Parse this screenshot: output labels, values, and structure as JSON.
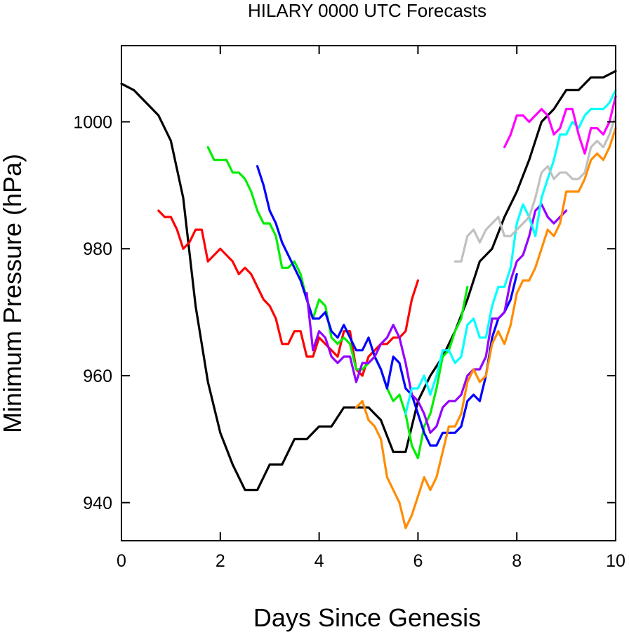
{
  "chart_data": {
    "type": "line",
    "title": "HILARY 0000 UTC Forecasts",
    "xlabel": "Days Since Genesis",
    "ylabel": "Minimum Pressure (hPa)",
    "xlim": [
      0,
      10
    ],
    "ylim": [
      934,
      1012
    ],
    "xticks": [
      "0",
      "2",
      "4",
      "6",
      "8",
      "10"
    ],
    "yticks": [
      "940",
      "960",
      "980",
      "1000"
    ],
    "grid": false,
    "series": [
      {
        "color": "#000000",
        "x": [
          0,
          0.25,
          0.5,
          0.75,
          1.0,
          1.25,
          1.5,
          1.75,
          2.0,
          2.25,
          2.5,
          2.75,
          3.0,
          3.25,
          3.5,
          3.75,
          4.0,
          4.25,
          4.5,
          4.75,
          5.0,
          5.25,
          5.5,
          5.75,
          6.0,
          6.25,
          6.5,
          6.75,
          7.0,
          7.25,
          7.5,
          7.75,
          8.0,
          8.25,
          8.5,
          8.75,
          9.0,
          9.25,
          9.5,
          9.75,
          10.0
        ],
        "y": [
          1006,
          1005,
          1003,
          1001,
          997,
          988,
          971,
          959,
          951,
          946,
          942,
          942,
          946,
          946,
          950,
          950,
          952,
          952,
          955,
          955,
          955,
          953,
          948,
          948,
          956,
          960,
          963,
          967,
          972,
          978,
          980,
          985,
          989,
          994,
          1000,
          1002,
          1005,
          1005,
          1007,
          1007,
          1008
        ]
      },
      {
        "color": "#ff0000",
        "x": [
          0.75,
          0.875,
          1.0,
          1.125,
          1.25,
          1.375,
          1.5,
          1.625,
          1.75,
          1.875,
          2.0,
          2.125,
          2.25,
          2.375,
          2.5,
          2.625,
          2.75,
          2.875,
          3.0,
          3.125,
          3.25,
          3.375,
          3.5,
          3.625,
          3.75,
          3.875,
          4.0,
          4.125,
          4.25,
          4.375,
          4.5,
          4.625,
          4.75,
          4.875,
          5.0,
          5.125,
          5.25,
          5.375,
          5.5,
          5.625,
          5.75,
          5.875,
          6.0
        ],
        "y": [
          986,
          985,
          985,
          983,
          980,
          981,
          983,
          983,
          978,
          979,
          980,
          979,
          978,
          976,
          977,
          976,
          974,
          972,
          971,
          969,
          965,
          965,
          967,
          967,
          963,
          963,
          966,
          965,
          964,
          963,
          967,
          967,
          961,
          960,
          963,
          964,
          965,
          965,
          966,
          966,
          967,
          972,
          975
        ]
      },
      {
        "color": "#00ee00",
        "x": [
          1.75,
          1.875,
          2.0,
          2.125,
          2.25,
          2.375,
          2.5,
          2.625,
          2.75,
          2.875,
          3.0,
          3.125,
          3.25,
          3.375,
          3.5,
          3.625,
          3.75,
          3.875,
          4.0,
          4.125,
          4.25,
          4.375,
          4.5,
          4.625,
          4.75,
          4.875,
          5.0,
          5.125,
          5.25,
          5.375,
          5.5,
          5.625,
          5.75,
          5.875,
          6.0,
          6.125,
          6.25,
          6.375,
          6.5,
          6.625,
          6.75,
          6.875,
          7.0
        ],
        "y": [
          996,
          994,
          994,
          994,
          992,
          992,
          991,
          989,
          986,
          984,
          984,
          982,
          977,
          977,
          978,
          976,
          972,
          969,
          972,
          971,
          966,
          965,
          966,
          965,
          961,
          961,
          962,
          963,
          961,
          958,
          956,
          957,
          954,
          949,
          947,
          952,
          954,
          958,
          963,
          964,
          967,
          969,
          974
        ]
      },
      {
        "color": "#0000ff",
        "x": [
          2.75,
          2.875,
          3.0,
          3.125,
          3.25,
          3.375,
          3.5,
          3.625,
          3.75,
          3.875,
          4.0,
          4.125,
          4.25,
          4.375,
          4.5,
          4.625,
          4.75,
          4.875,
          5.0,
          5.125,
          5.25,
          5.375,
          5.5,
          5.625,
          5.75,
          5.875,
          6.0,
          6.125,
          6.25,
          6.375,
          6.5,
          6.625,
          6.75,
          6.875,
          7.0,
          7.125,
          7.25,
          7.375,
          7.5,
          7.625,
          7.75,
          7.875,
          8.0
        ],
        "y": [
          993,
          990,
          986,
          984,
          981,
          979,
          977,
          975,
          972,
          969,
          969,
          970,
          967,
          966,
          968,
          966,
          964,
          964,
          966,
          963,
          961,
          958,
          963,
          962,
          958,
          957,
          954,
          951,
          949,
          949,
          951,
          951,
          951,
          952,
          956,
          957,
          956,
          960,
          966,
          969,
          970,
          972,
          976
        ]
      },
      {
        "color": "#9400ff",
        "x": [
          3.75,
          3.875,
          4.0,
          4.125,
          4.25,
          4.375,
          4.5,
          4.625,
          4.75,
          4.875,
          5.0,
          5.125,
          5.25,
          5.375,
          5.5,
          5.625,
          5.75,
          5.875,
          6.0,
          6.125,
          6.25,
          6.375,
          6.5,
          6.625,
          6.75,
          6.875,
          7.0,
          7.125,
          7.25,
          7.375,
          7.5,
          7.625,
          7.75,
          7.875,
          8.0,
          8.125,
          8.25,
          8.375,
          8.5,
          8.625,
          8.75,
          8.875,
          9.0
        ],
        "y": [
          973,
          964,
          967,
          966,
          963,
          962,
          963,
          963,
          959,
          962,
          962,
          963,
          965,
          966,
          968,
          966,
          962,
          957,
          956,
          954,
          951,
          952,
          955,
          956,
          956,
          957,
          960,
          961,
          961,
          963,
          969,
          969,
          970,
          975,
          978,
          979,
          982,
          986,
          987,
          985,
          984,
          985,
          986
        ]
      },
      {
        "color": "#ff8c00",
        "x": [
          4.75,
          4.875,
          5.0,
          5.125,
          5.25,
          5.375,
          5.5,
          5.625,
          5.75,
          5.875,
          6.0,
          6.125,
          6.25,
          6.375,
          6.5,
          6.625,
          6.75,
          6.875,
          7.0,
          7.125,
          7.25,
          7.375,
          7.5,
          7.625,
          7.75,
          7.875,
          8.0,
          8.125,
          8.25,
          8.375,
          8.5,
          8.625,
          8.75,
          8.875,
          9.0,
          9.125,
          9.25,
          9.375,
          9.5,
          9.625,
          9.75,
          9.875,
          10.0
        ],
        "y": [
          955,
          956,
          953,
          952,
          950,
          944,
          942,
          940,
          936,
          938,
          941,
          944,
          942,
          944,
          948,
          952,
          952,
          954,
          959,
          961,
          959,
          960,
          965,
          967,
          965,
          968,
          973,
          975,
          975,
          977,
          980,
          983,
          982,
          984,
          989,
          989,
          989,
          991,
          994,
          995,
          994,
          996,
          999
        ]
      },
      {
        "color": "#00ffff",
        "x": [
          5.75,
          5.875,
          6.0,
          6.125,
          6.25,
          6.375,
          6.5,
          6.625,
          6.75,
          6.875,
          7.0,
          7.125,
          7.25,
          7.375,
          7.5,
          7.625,
          7.75,
          7.875,
          8.0,
          8.125,
          8.25,
          8.375,
          8.5,
          8.625,
          8.75,
          8.875,
          9.0,
          9.125,
          9.25,
          9.375,
          9.5,
          9.625,
          9.75,
          9.875,
          10.0
        ],
        "y": [
          954,
          958,
          958,
          960,
          957,
          960,
          964,
          964,
          962,
          963,
          968,
          969,
          966,
          966,
          971,
          974,
          974,
          977,
          984,
          987,
          985,
          982,
          988,
          991,
          994,
          998,
          998,
          1000,
          999,
          1001,
          1002,
          1002,
          1002,
          1003,
          1005
        ]
      },
      {
        "color": "#c0c0c0",
        "x": [
          6.75,
          6.875,
          7.0,
          7.125,
          7.25,
          7.375,
          7.5,
          7.625,
          7.75,
          7.875,
          8.0,
          8.125,
          8.25,
          8.375,
          8.5,
          8.625,
          8.75,
          8.875,
          9.0,
          9.125,
          9.25,
          9.375,
          9.5,
          9.625,
          9.75,
          9.875,
          10.0
        ],
        "y": [
          978,
          978,
          982,
          983,
          981,
          983,
          984,
          985,
          982,
          982,
          983,
          984,
          985,
          988,
          992,
          993,
          991,
          992,
          992,
          991,
          991,
          992,
          996,
          997,
          996,
          998,
          1001
        ]
      },
      {
        "color": "#ff00ff",
        "x": [
          7.75,
          7.875,
          8.0,
          8.125,
          8.25,
          8.375,
          8.5,
          8.625,
          8.75,
          8.875,
          9.0,
          9.125,
          9.25,
          9.375,
          9.5,
          9.625,
          9.75,
          9.875,
          10.0
        ],
        "y": [
          996,
          998,
          1001,
          1001,
          1000,
          1001,
          1002,
          1001,
          998,
          999,
          1002,
          1002,
          998,
          995,
          999,
          999,
          998,
          1000,
          1004
        ]
      }
    ]
  }
}
